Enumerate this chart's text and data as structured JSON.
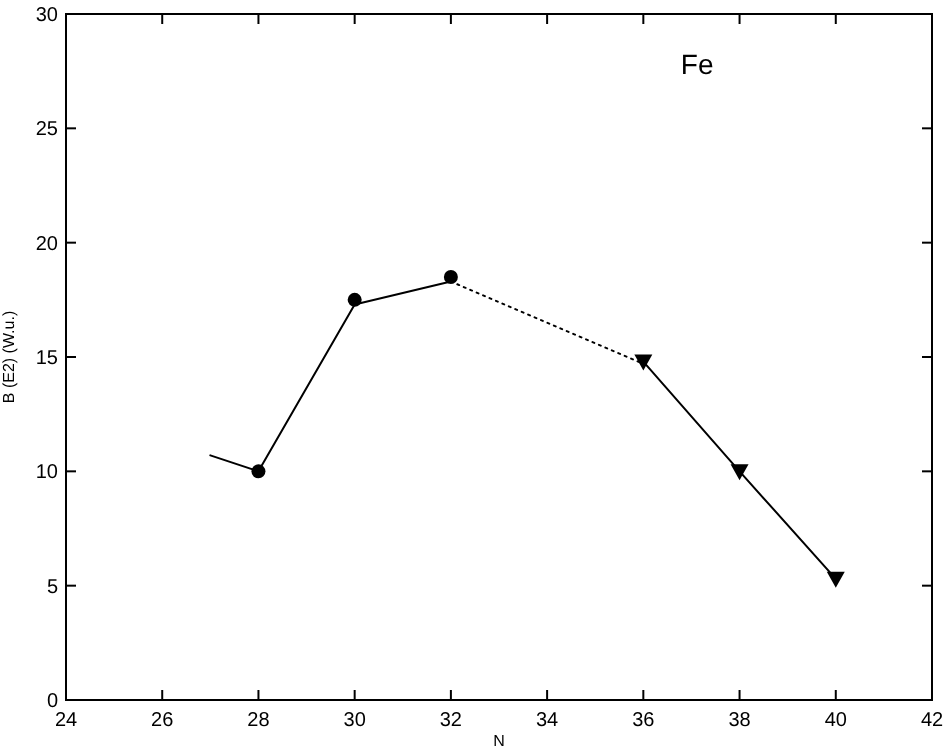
{
  "chart_data": {
    "type": "line",
    "xlabel": "N",
    "ylabel": "B (E2) (W.u.)",
    "annotations": [
      "Fe"
    ],
    "xlim": [
      24,
      42
    ],
    "xticks": [
      24,
      26,
      28,
      30,
      32,
      34,
      36,
      38,
      40,
      42
    ],
    "ylim": [
      0,
      30
    ],
    "yticks": [
      0,
      5,
      10,
      15,
      20,
      25,
      30
    ],
    "grid": false,
    "series": [
      {
        "color": "#000000",
        "marker": "none",
        "line_style": "solid",
        "x": [
          27,
          28,
          30,
          32
        ],
        "values": [
          10.7,
          10,
          17.3,
          18.3
        ]
      },
      {
        "type": "scatter",
        "color": "#000000",
        "marker": "circle",
        "x": [
          28,
          30,
          32
        ],
        "values": [
          10,
          17.5,
          18.5
        ]
      },
      {
        "color": "#000000",
        "marker": "none",
        "line_style": "dotted",
        "x": [
          32,
          36
        ],
        "values": [
          18.3,
          14.7
        ]
      },
      {
        "color": "#000000",
        "marker": "triangle",
        "line_style": "solid",
        "x": [
          36,
          38,
          40
        ],
        "values": [
          14.8,
          10,
          5.3
        ]
      }
    ]
  }
}
